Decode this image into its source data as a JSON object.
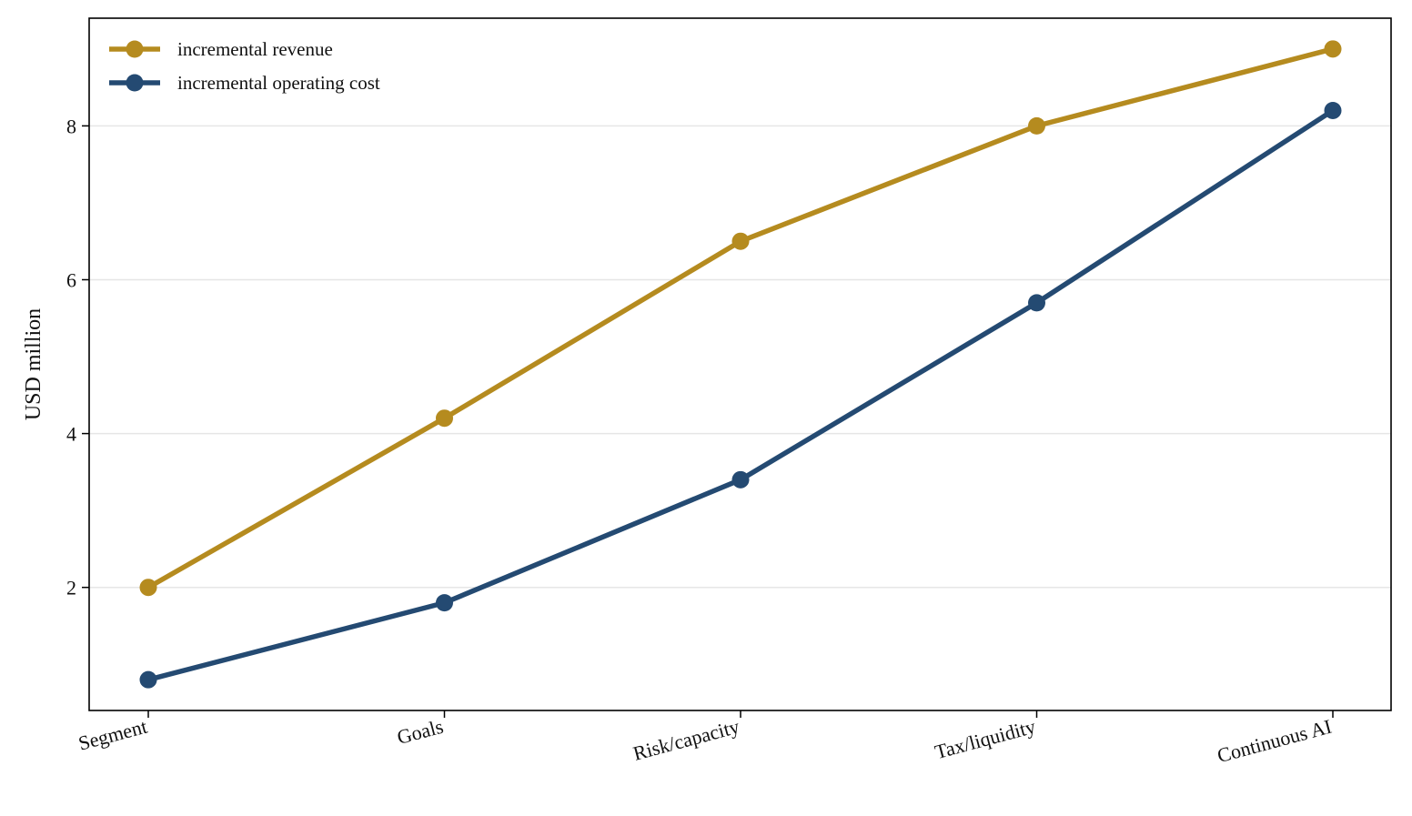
{
  "chart_data": {
    "type": "line",
    "categories": [
      "Segment",
      "Goals",
      "Risk/capacity",
      "Tax/liquidity",
      "Continuous AI"
    ],
    "series": [
      {
        "name": "incremental revenue",
        "values": [
          2.0,
          4.2,
          6.5,
          8.0,
          9.0
        ],
        "color": "#B58B1F"
      },
      {
        "name": "incremental operating cost",
        "values": [
          0.8,
          1.8,
          3.4,
          5.7,
          8.2
        ],
        "color": "#244A72"
      }
    ],
    "title": "",
    "xlabel": "",
    "ylabel": "USD million",
    "ylim": [
      0.4,
      9.4
    ],
    "yticks": [
      2,
      4,
      6,
      8
    ],
    "grid": "horizontal",
    "legend": "top-left"
  }
}
